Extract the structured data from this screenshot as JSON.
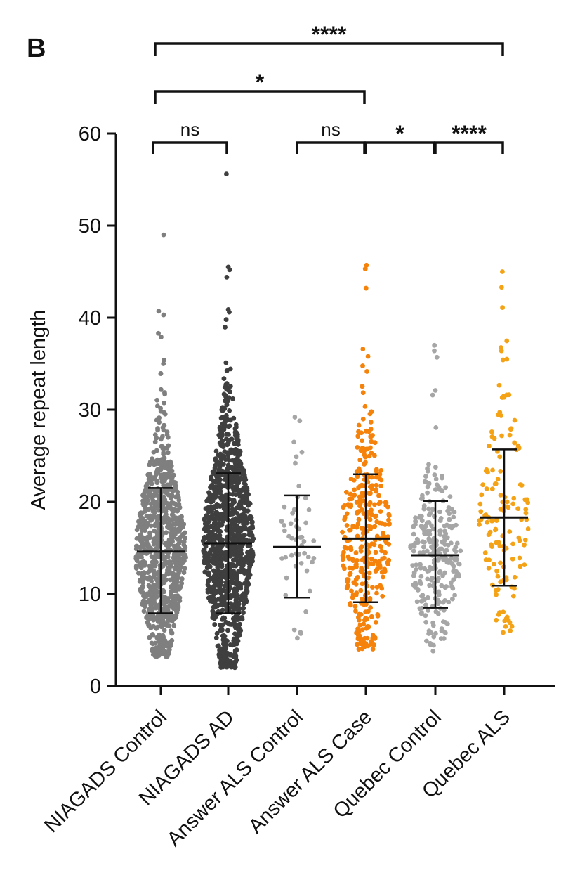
{
  "panel_label": "B",
  "chart_data": {
    "type": "scatter",
    "subtype": "beeswarm with mean ± SD",
    "title": "",
    "xlabel": "",
    "ylabel": "Average repeat length",
    "ylim": [
      0,
      60
    ],
    "yticks": [
      0,
      10,
      20,
      30,
      40,
      50,
      60
    ],
    "grid": false,
    "legend": "none",
    "categories": [
      "NIAGADS Control",
      "NIAGADS AD",
      "Answer ALS Control",
      "Answer ALS Case",
      "Quebec Control",
      "Quebec ALS"
    ],
    "series": [
      {
        "group": "NIAGADS Control",
        "color": "#7f7f7f",
        "mean": 14.6,
        "sd_low": 7.9,
        "sd_high": 21.5,
        "min": 3.2,
        "max": 49.0,
        "n_approx": 900,
        "notable_points": [
          49.0,
          40.7,
          40.3,
          38.3,
          37.9,
          35.0
        ]
      },
      {
        "group": "NIAGADS AD",
        "color": "#3f3f3f",
        "mean": 15.5,
        "sd_low": 7.9,
        "sd_high": 23.1,
        "min": 2.0,
        "max": 55.6,
        "n_approx": 1100,
        "notable_points": [
          55.6,
          45.5,
          45.2,
          44.4,
          40.6,
          39.8
        ]
      },
      {
        "group": "Answer ALS Control",
        "color": "#a6a6a6",
        "mean": 15.1,
        "sd_low": 9.6,
        "sd_high": 20.7,
        "min": 5.2,
        "max": 29.2,
        "n_approx": 45,
        "notable_points": [
          29.2,
          28.8,
          26.5,
          25.4
        ]
      },
      {
        "group": "Answer ALS Case",
        "color": "#f5820a",
        "mean": 16.0,
        "sd_low": 9.1,
        "sd_high": 23.0,
        "min": 4.0,
        "max": 45.7,
        "n_approx": 330,
        "notable_points": [
          45.7,
          45.3,
          43.2,
          36.6,
          35.8
        ]
      },
      {
        "group": "Quebec Control",
        "color": "#a6a6a6",
        "mean": 14.2,
        "sd_low": 8.5,
        "sd_high": 20.1,
        "min": 3.8,
        "max": 37.0,
        "n_approx": 260,
        "notable_points": [
          37.0,
          36.4,
          35.7,
          32.1,
          31.6
        ]
      },
      {
        "group": "Quebec ALS",
        "color": "#f5a316",
        "mean": 18.3,
        "sd_low": 10.9,
        "sd_high": 25.7,
        "min": 5.8,
        "max": 45.0,
        "n_approx": 130,
        "notable_points": [
          45.0,
          43.3,
          41.1,
          36.4
        ]
      }
    ],
    "comparisons": [
      {
        "from": "NIAGADS Control",
        "to": "Quebec ALS",
        "label": "****"
      },
      {
        "from": "NIAGADS Control",
        "to": "Answer ALS Case",
        "label": "*"
      },
      {
        "from": "NIAGADS Control",
        "to": "NIAGADS AD",
        "label": "ns"
      },
      {
        "from": "Answer ALS Control",
        "to": "Answer ALS Case",
        "label": "ns"
      },
      {
        "from": "Answer ALS Case",
        "to": "Quebec Control",
        "label": "*"
      },
      {
        "from": "Quebec Control",
        "to": "Quebec ALS",
        "label": "****"
      }
    ]
  }
}
